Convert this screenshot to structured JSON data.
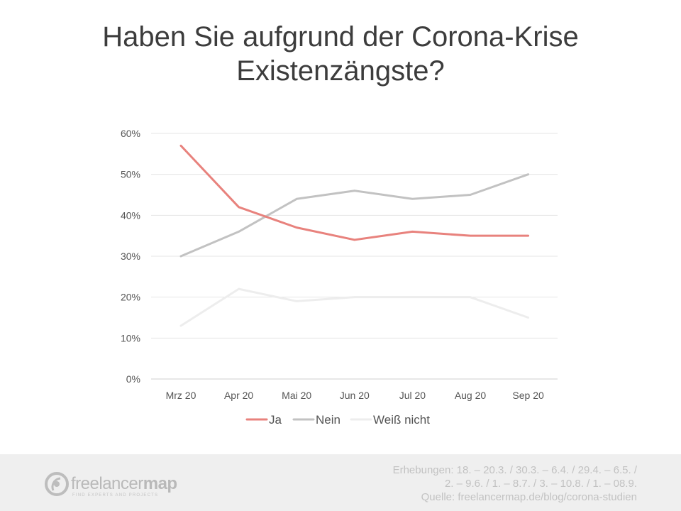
{
  "title_line1": "Haben Sie aufgrund der Corona-Krise",
  "title_line2": "Existenzängste?",
  "chart_data": {
    "type": "line",
    "categories": [
      "Mrz 20",
      "Apr 20",
      "Mai 20",
      "Jun 20",
      "Jul 20",
      "Aug 20",
      "Sep 20"
    ],
    "series": [
      {
        "name": "Ja",
        "values": [
          57,
          42,
          37,
          34,
          36,
          35,
          35
        ],
        "color": "#e8827d"
      },
      {
        "name": "Nein",
        "values": [
          30,
          36,
          44,
          46,
          44,
          45,
          50
        ],
        "color": "#c2c2c2"
      },
      {
        "name": "Weiß nicht",
        "values": [
          13,
          22,
          19,
          20,
          20,
          20,
          15
        ],
        "color": "#ededed"
      }
    ],
    "y_ticks": [
      "0%",
      "10%",
      "20%",
      "30%",
      "40%",
      "50%",
      "60%"
    ],
    "ylim": [
      0,
      60
    ],
    "grid": true,
    "legend_position": "bottom"
  },
  "footer": {
    "logo_text_light": "freelancer",
    "logo_text_bold": "map",
    "logo_tagline": "FIND EXPERTS AND PROJECTS",
    "note_line1": "Erhebungen:  18. – 20.3. / 30.3. – 6.4. / 29.4. – 6.5. /",
    "note_line2": "2. – 9.6. / 1. – 8.7. / 3. – 10.8. / 1. – 08.9.",
    "note_line3": "Quelle: freelancermap.de/blog/corona-studien"
  }
}
